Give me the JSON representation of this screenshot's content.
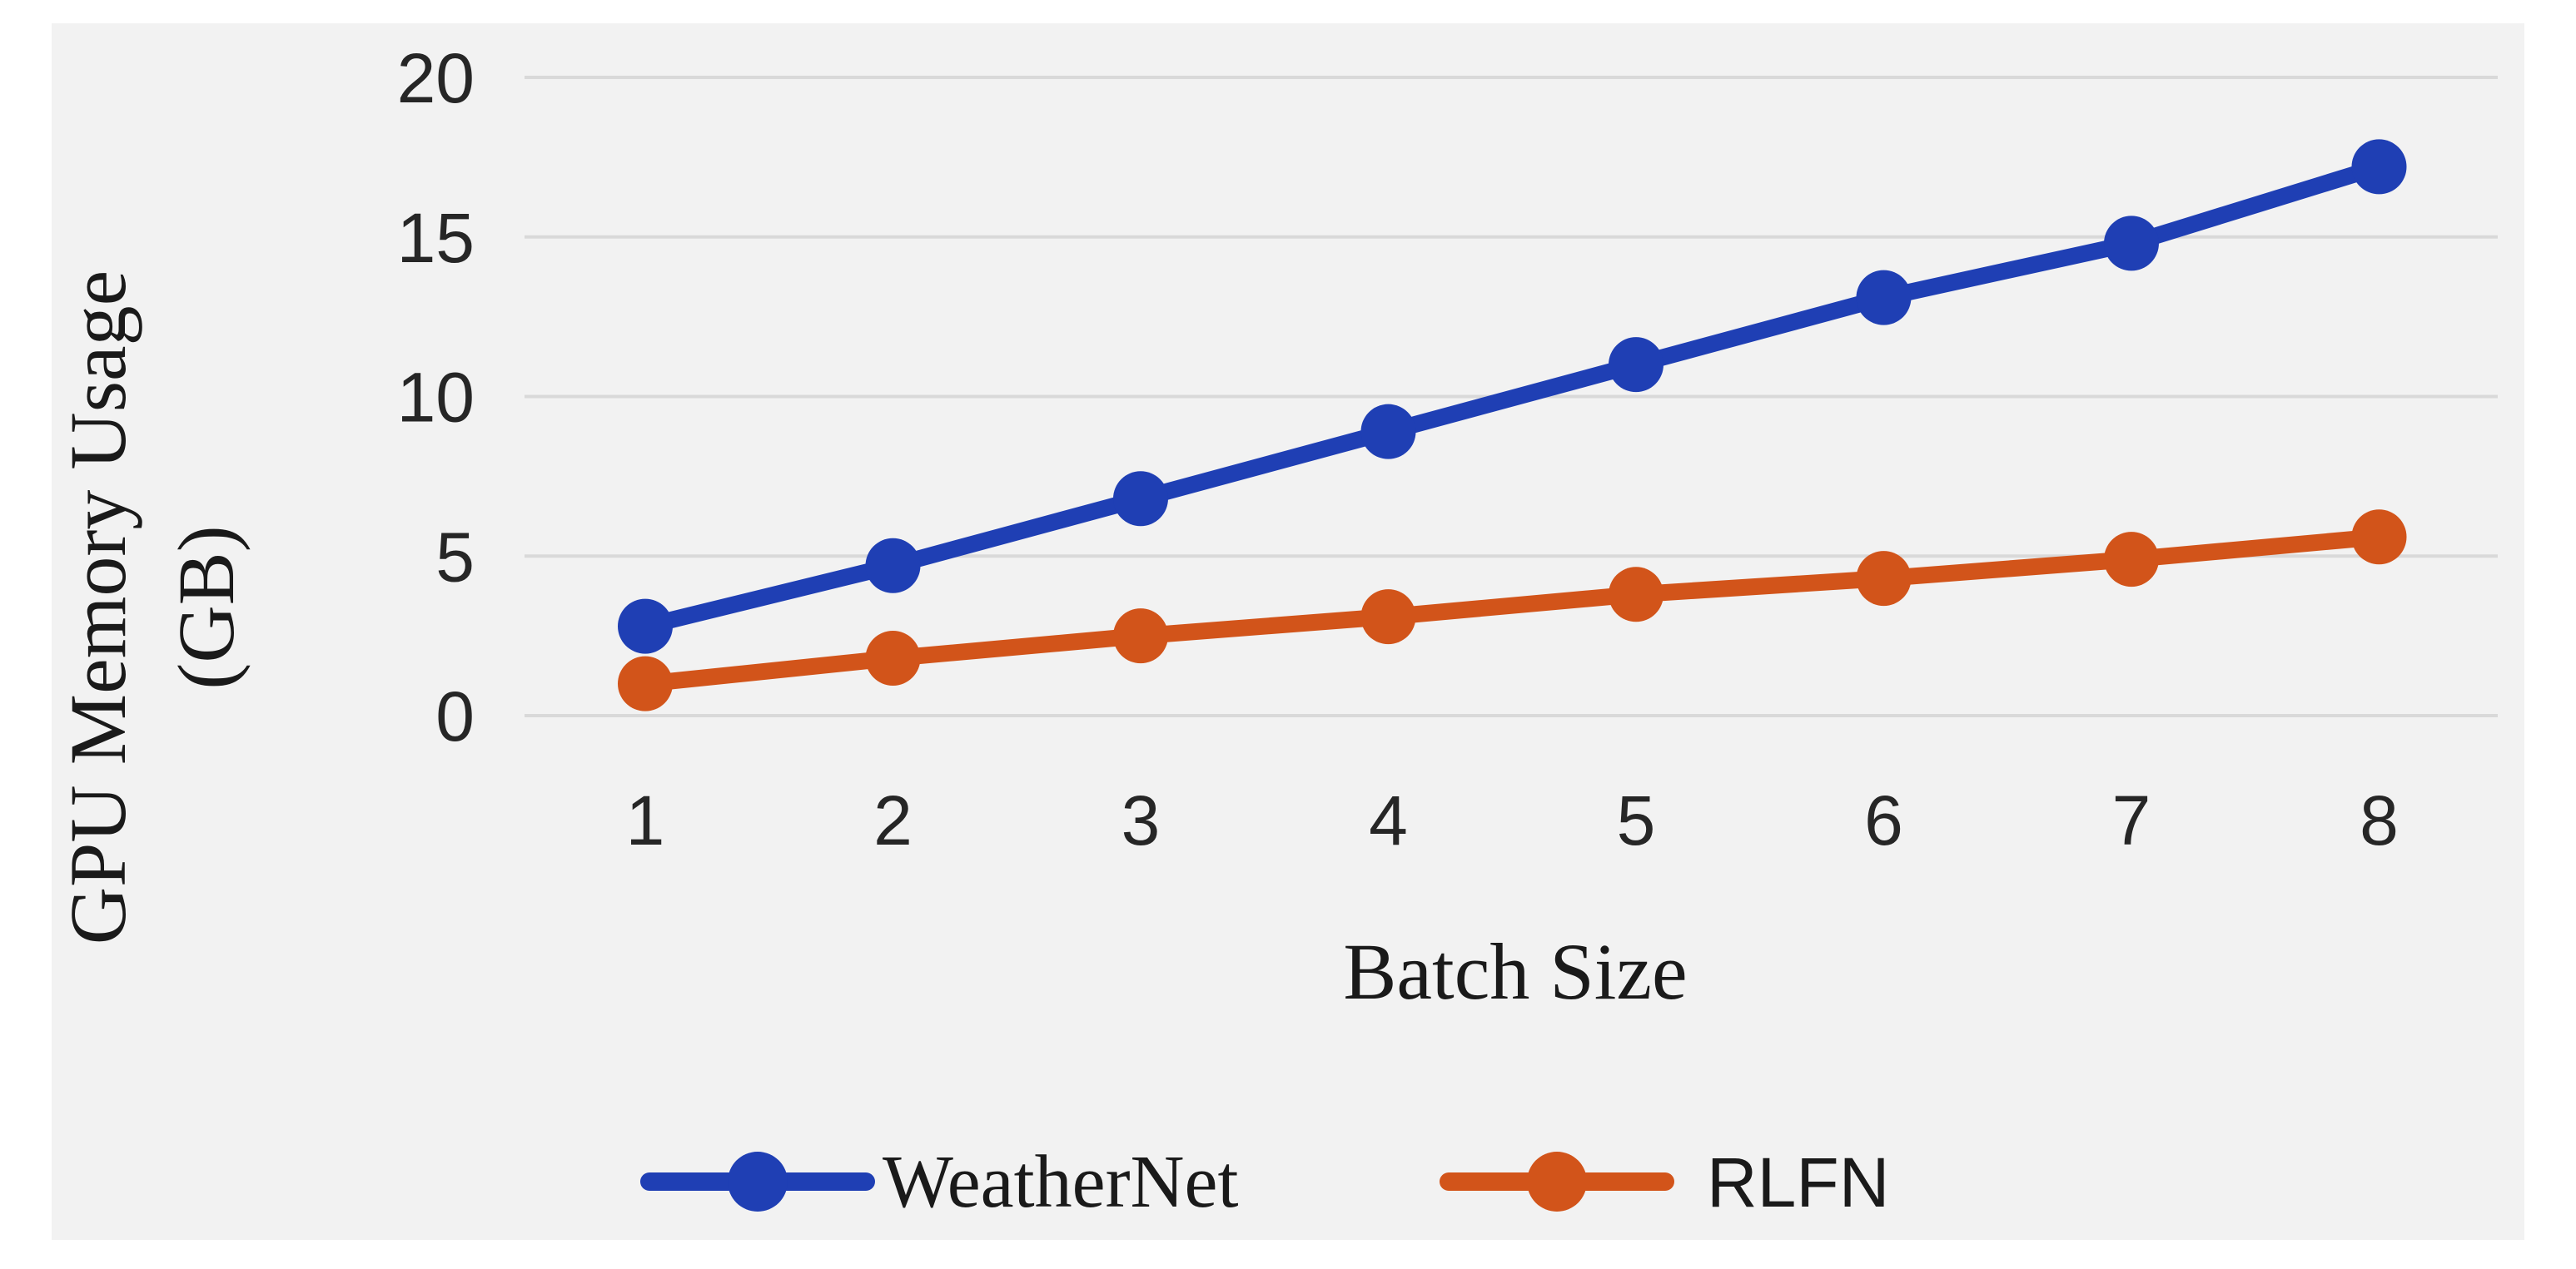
{
  "chart_data": {
    "type": "line",
    "title": "",
    "xlabel": "Batch Size",
    "ylabel_lines": [
      "GPU Memory Usage",
      "(GB)"
    ],
    "categories": [
      "1",
      "2",
      "3",
      "4",
      "5",
      "6",
      "7",
      "8"
    ],
    "x": [
      1,
      2,
      3,
      4,
      5,
      6,
      7,
      8
    ],
    "y_ticks": [
      "0",
      "5",
      "10",
      "15",
      "20"
    ],
    "ylim": [
      0,
      20
    ],
    "grid": true,
    "legend_position": "bottom",
    "series": [
      {
        "name": "WeatherNet",
        "color": "#1f3fb4",
        "values": [
          2.8,
          4.7,
          6.8,
          8.9,
          11.0,
          13.1,
          14.8,
          17.2
        ]
      },
      {
        "name": "RLFN",
        "color": "#d2541a",
        "values": [
          1.0,
          1.8,
          2.5,
          3.1,
          3.8,
          4.3,
          4.9,
          5.6
        ]
      }
    ]
  }
}
